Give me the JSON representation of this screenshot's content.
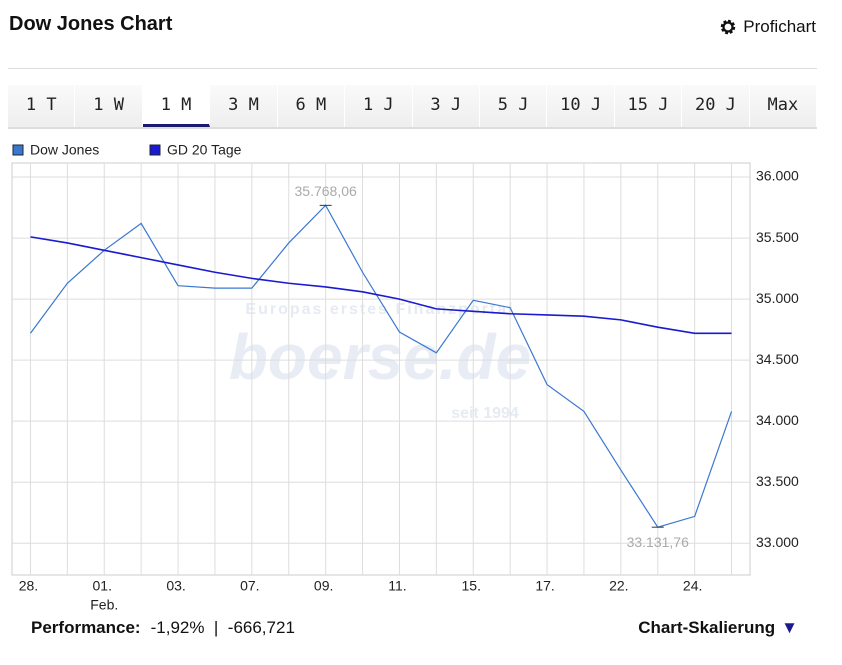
{
  "header": {
    "title": "Dow Jones Chart",
    "link": "Profichart"
  },
  "tabs": [
    "1 T",
    "1 W",
    "1 M",
    "3 M",
    "6 M",
    "1 J",
    "3 J",
    "5 J",
    "10 J",
    "15 J",
    "20 J",
    "Max"
  ],
  "active_tab": "1 M",
  "chart_data": {
    "type": "line",
    "categories": [
      "28.",
      null,
      "01.",
      null,
      "03.",
      null,
      "07.",
      null,
      "09.",
      null,
      "11.",
      null,
      "15.",
      null,
      "17.",
      null,
      "22.",
      null,
      "24.",
      null
    ],
    "month_label": "Feb.",
    "series": [
      {
        "name": "Dow Jones",
        "color": "#3a78d0",
        "values": [
          34720,
          35130,
          35400,
          35620,
          35110,
          35090,
          35090,
          35460,
          35768.06,
          35220,
          34730,
          34560,
          34990,
          34930,
          34300,
          34080,
          33600,
          33131.76,
          33220,
          34080
        ],
        "value_labels": [
          null,
          null,
          null,
          null,
          null,
          null,
          null,
          null,
          "35.768,06",
          null,
          null,
          null,
          null,
          null,
          null,
          null,
          null,
          "33.131,76",
          null,
          null
        ]
      },
      {
        "name": "GD 20 Tage",
        "color": "#1a1ad0",
        "values": [
          35510,
          35460,
          35400,
          35340,
          35280,
          35220,
          35170,
          35130,
          35100,
          35060,
          35000,
          34920,
          34900,
          34880,
          34870,
          34860,
          34830,
          34770,
          34720,
          34720
        ]
      }
    ],
    "ylim": [
      32740,
      36115
    ],
    "yticks": [
      {
        "value": 33000,
        "label": "33.000"
      },
      {
        "value": 33500,
        "label": "33.500"
      },
      {
        "value": 34000,
        "label": "34.000"
      },
      {
        "value": 34500,
        "label": "34.500"
      },
      {
        "value": 35000,
        "label": "35.000"
      },
      {
        "value": 35500,
        "label": "35.500"
      },
      {
        "value": 36000,
        "label": "36.000"
      }
    ],
    "grid": true,
    "watermark": {
      "top": "Europas erstes Finanzportal",
      "logo": "boerse.de",
      "bottom": "seit 1994"
    }
  },
  "footer": {
    "performance_label": "Performance:",
    "performance_value": "-1,92%  |  -666,721",
    "scaling": "Chart-Skalierung"
  }
}
